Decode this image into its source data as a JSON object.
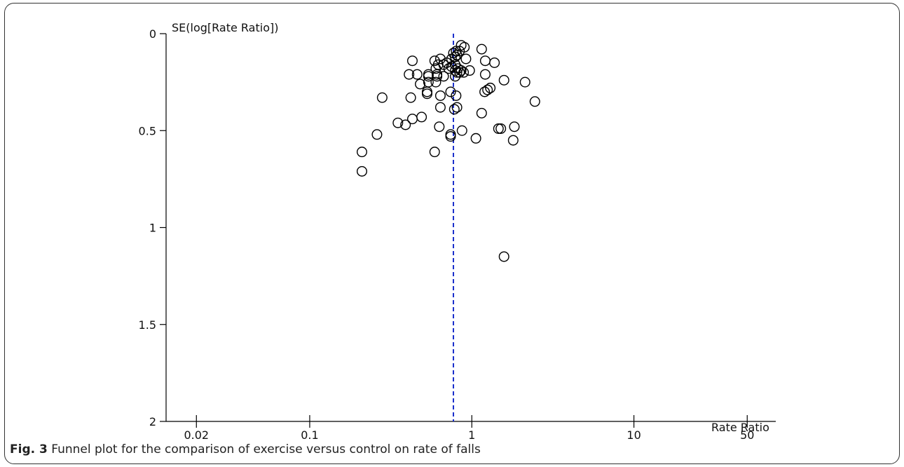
{
  "caption": {
    "label": "Fig. 3",
    "text": " Funnel plot for the comparison of exercise versus control on rate of falls"
  },
  "chart_data": {
    "type": "scatter",
    "title": "",
    "xlabel": "Rate Ratio",
    "ylabel": "SE(log[Rate Ratio])",
    "x_scale": "log",
    "xlim": [
      0.013,
      75
    ],
    "ylim": [
      0,
      2
    ],
    "y_inverted": true,
    "x_ticks": [
      0.02,
      0.1,
      1,
      10,
      50
    ],
    "x_tick_labels": [
      "0.02",
      "0.1",
      "1",
      "10",
      "50"
    ],
    "y_ticks": [
      0,
      0.5,
      1,
      1.5,
      2
    ],
    "y_tick_labels": [
      "0",
      "0.5",
      "1",
      "1.5",
      "2"
    ],
    "pooled_estimate": 0.77,
    "colors": {
      "reference_line": "#1a2fcc",
      "points": "#000000",
      "axes": "#000000"
    },
    "marker": "open-circle",
    "points": [
      [
        0.86,
        0.06
      ],
      [
        0.9,
        0.07
      ],
      [
        1.15,
        0.08
      ],
      [
        0.8,
        0.09
      ],
      [
        0.84,
        0.09
      ],
      [
        0.77,
        0.1
      ],
      [
        0.81,
        0.11
      ],
      [
        0.79,
        0.12
      ],
      [
        0.92,
        0.13
      ],
      [
        0.75,
        0.13
      ],
      [
        0.64,
        0.13
      ],
      [
        0.43,
        0.14
      ],
      [
        0.59,
        0.14
      ],
      [
        1.21,
        0.14
      ],
      [
        1.38,
        0.15
      ],
      [
        0.7,
        0.15
      ],
      [
        0.79,
        0.16
      ],
      [
        0.62,
        0.16
      ],
      [
        0.67,
        0.16
      ],
      [
        0.75,
        0.17
      ],
      [
        0.72,
        0.18
      ],
      [
        0.6,
        0.18
      ],
      [
        0.82,
        0.18
      ],
      [
        0.79,
        0.19
      ],
      [
        0.97,
        0.19
      ],
      [
        0.86,
        0.19
      ],
      [
        0.84,
        0.2
      ],
      [
        0.89,
        0.2
      ],
      [
        0.81,
        0.2
      ],
      [
        0.41,
        0.21
      ],
      [
        0.46,
        0.21
      ],
      [
        0.54,
        0.21
      ],
      [
        0.54,
        0.22
      ],
      [
        1.21,
        0.21
      ],
      [
        0.61,
        0.21
      ],
      [
        0.61,
        0.22
      ],
      [
        0.67,
        0.22
      ],
      [
        0.79,
        0.22
      ],
      [
        0.48,
        0.26
      ],
      [
        0.54,
        0.25
      ],
      [
        0.6,
        0.25
      ],
      [
        1.58,
        0.24
      ],
      [
        2.13,
        0.25
      ],
      [
        1.3,
        0.28
      ],
      [
        1.25,
        0.29
      ],
      [
        0.53,
        0.3
      ],
      [
        0.74,
        0.3
      ],
      [
        1.2,
        0.3
      ],
      [
        0.53,
        0.31
      ],
      [
        0.64,
        0.32
      ],
      [
        0.8,
        0.32
      ],
      [
        0.28,
        0.33
      ],
      [
        0.42,
        0.33
      ],
      [
        2.45,
        0.35
      ],
      [
        0.64,
        0.38
      ],
      [
        0.81,
        0.38
      ],
      [
        0.78,
        0.39
      ],
      [
        1.15,
        0.41
      ],
      [
        0.49,
        0.43
      ],
      [
        0.43,
        0.44
      ],
      [
        0.35,
        0.46
      ],
      [
        0.39,
        0.47
      ],
      [
        0.63,
        0.48
      ],
      [
        1.83,
        0.48
      ],
      [
        1.46,
        0.49
      ],
      [
        1.51,
        0.49
      ],
      [
        0.87,
        0.5
      ],
      [
        0.26,
        0.52
      ],
      [
        0.74,
        0.52
      ],
      [
        0.74,
        0.53
      ],
      [
        1.06,
        0.54
      ],
      [
        1.8,
        0.55
      ],
      [
        0.21,
        0.61
      ],
      [
        0.59,
        0.61
      ],
      [
        0.21,
        0.71
      ],
      [
        1.58,
        1.15
      ]
    ]
  }
}
